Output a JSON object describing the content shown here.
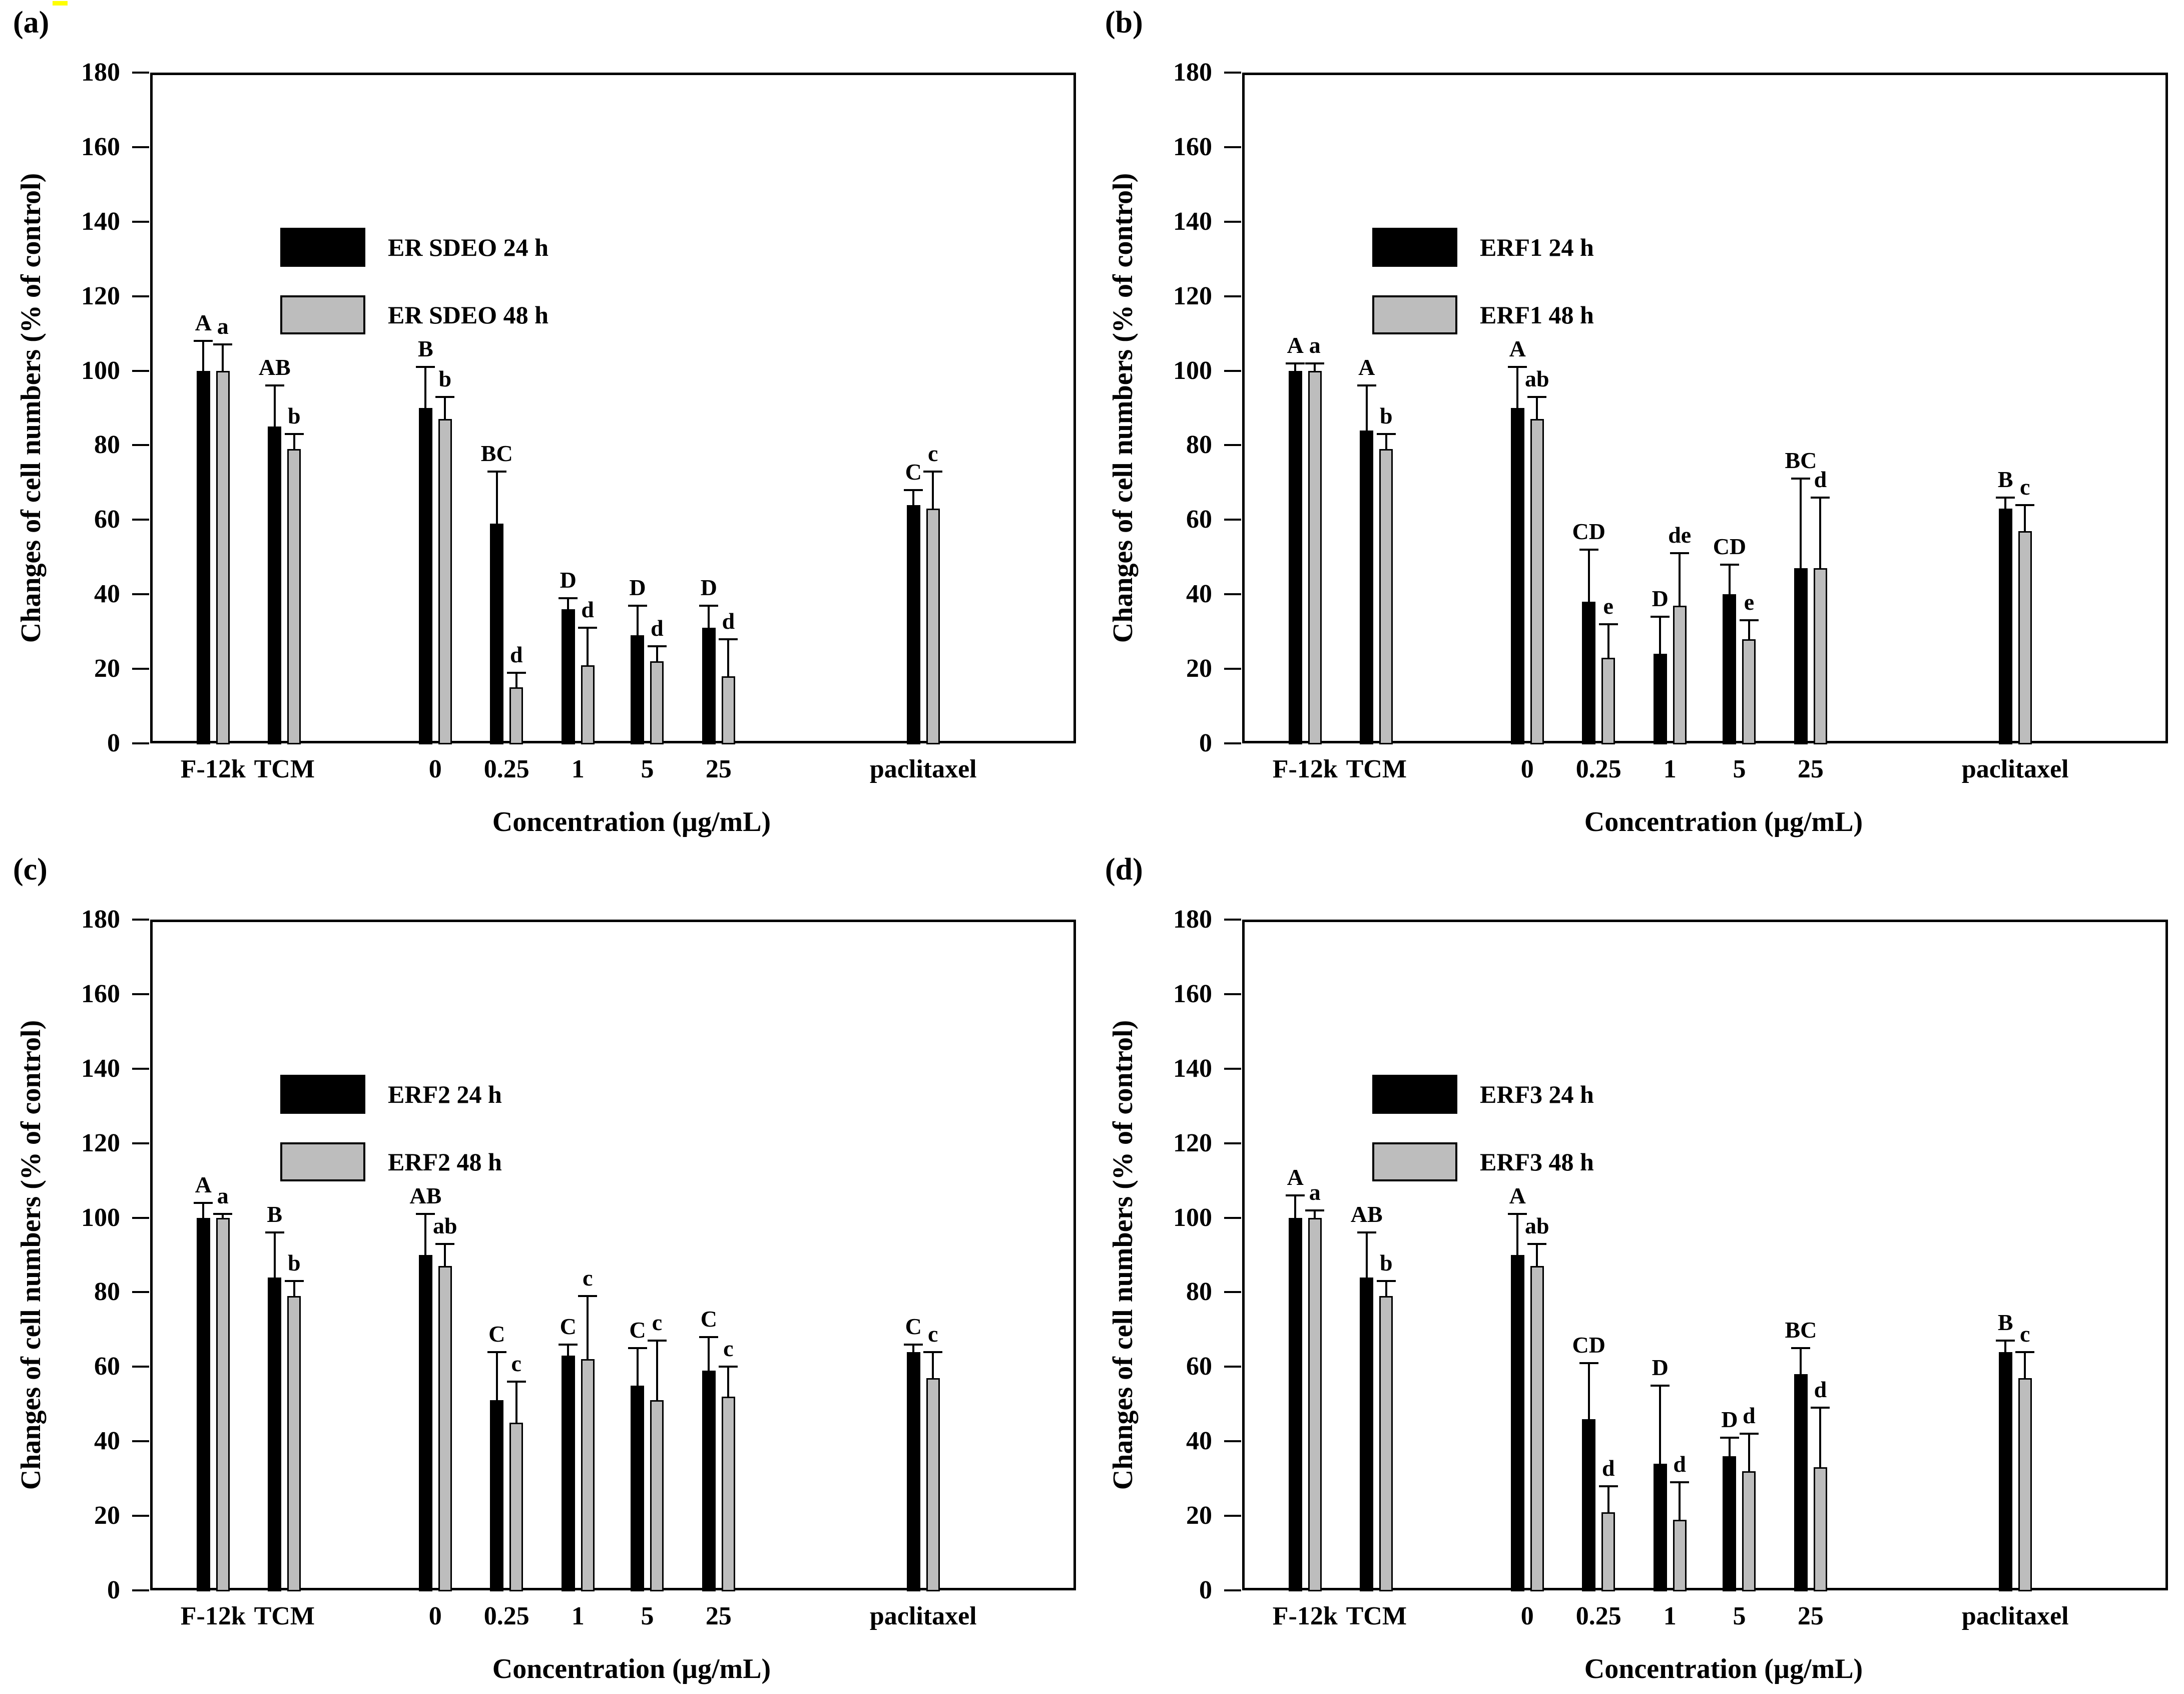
{
  "figure": {
    "background": "#ffffff",
    "highlight_mark_color": "#ffff00",
    "series_colors": {
      "24h": "#000000",
      "48h": "#bdbdbd"
    }
  },
  "chart_data": [
    {
      "panel_label": "(a)",
      "type": "bar",
      "title": "",
      "xlabel": "Concentration (µg/mL)",
      "ylabel": "Changes of cell numbers (% of control)",
      "ylim": [
        0,
        180
      ],
      "ytick_step": 20,
      "grid": false,
      "legend_position": "top-left-inside",
      "categories": [
        "F-12k",
        "TCM",
        "0",
        "0.25",
        "1",
        "5",
        "25",
        "paclitaxel"
      ],
      "category_positions": [
        0.068,
        0.145,
        0.308,
        0.385,
        0.462,
        0.537,
        0.614,
        0.835
      ],
      "series": [
        {
          "name": "ER SDEO 24 h",
          "color": "#000000",
          "values": [
            100,
            85,
            90,
            59,
            36,
            29,
            31,
            64
          ],
          "errors": [
            8,
            11,
            11,
            14,
            3,
            8,
            6,
            4
          ],
          "sig_letters": [
            "A",
            "AB",
            "B",
            "BC",
            "D",
            "D",
            "D",
            "C"
          ]
        },
        {
          "name": "ER SDEO 48 h",
          "color": "#bdbdbd",
          "values": [
            100,
            79,
            87,
            15,
            21,
            22,
            18,
            63
          ],
          "errors": [
            7,
            4,
            6,
            4,
            10,
            4,
            10,
            10
          ],
          "sig_letters": [
            "a",
            "b",
            "b",
            "d",
            "d",
            "d",
            "d",
            "c"
          ]
        }
      ]
    },
    {
      "panel_label": "(b)",
      "type": "bar",
      "title": "",
      "xlabel": "Concentration (µg/mL)",
      "ylabel": "Changes of cell numbers (% of control)",
      "ylim": [
        0,
        180
      ],
      "ytick_step": 20,
      "grid": false,
      "legend_position": "top-left-inside",
      "categories": [
        "F-12k",
        "TCM",
        "0",
        "0.25",
        "1",
        "5",
        "25",
        "paclitaxel"
      ],
      "category_positions": [
        0.068,
        0.145,
        0.308,
        0.385,
        0.462,
        0.537,
        0.614,
        0.835
      ],
      "series": [
        {
          "name": "ERF1 24 h",
          "color": "#000000",
          "values": [
            100,
            84,
            90,
            38,
            24,
            40,
            47,
            63
          ],
          "errors": [
            2,
            12,
            11,
            14,
            10,
            8,
            24,
            3
          ],
          "sig_letters": [
            "A",
            "A",
            "A",
            "CD",
            "D",
            "CD",
            "BC",
            "B"
          ]
        },
        {
          "name": "ERF1 48 h",
          "color": "#bdbdbd",
          "values": [
            100,
            79,
            87,
            23,
            37,
            28,
            47,
            57
          ],
          "errors": [
            2,
            4,
            6,
            9,
            14,
            5,
            19,
            7
          ],
          "sig_letters": [
            "a",
            "b",
            "ab",
            "e",
            "de",
            "e",
            "d",
            "c"
          ]
        }
      ]
    },
    {
      "panel_label": "(c)",
      "type": "bar",
      "title": "",
      "xlabel": "Concentration (µg/mL)",
      "ylabel": "Changes of cell numbers (% of control)",
      "ylim": [
        0,
        180
      ],
      "ytick_step": 20,
      "grid": false,
      "legend_position": "top-left-inside",
      "categories": [
        "F-12k",
        "TCM",
        "0",
        "0.25",
        "1",
        "5",
        "25",
        "paclitaxel"
      ],
      "category_positions": [
        0.068,
        0.145,
        0.308,
        0.385,
        0.462,
        0.537,
        0.614,
        0.835
      ],
      "series": [
        {
          "name": "ERF2 24 h",
          "color": "#000000",
          "values": [
            100,
            84,
            90,
            51,
            63,
            55,
            59,
            64
          ],
          "errors": [
            4,
            12,
            11,
            13,
            3,
            10,
            9,
            2
          ],
          "sig_letters": [
            "A",
            "B",
            "AB",
            "C",
            "C",
            "C",
            "C",
            "C"
          ]
        },
        {
          "name": "ERF2 48 h",
          "color": "#bdbdbd",
          "values": [
            100,
            79,
            87,
            45,
            62,
            51,
            52,
            57
          ],
          "errors": [
            1,
            4,
            6,
            11,
            17,
            16,
            8,
            7
          ],
          "sig_letters": [
            "a",
            "b",
            "ab",
            "c",
            "c",
            "c",
            "c",
            "c"
          ]
        }
      ]
    },
    {
      "panel_label": "(d)",
      "type": "bar",
      "title": "",
      "xlabel": "Concentration (µg/mL)",
      "ylabel": "Changes of cell numbers (% of control)",
      "ylim": [
        0,
        180
      ],
      "ytick_step": 20,
      "grid": false,
      "legend_position": "top-left-inside",
      "categories": [
        "F-12k",
        "TCM",
        "0",
        "0.25",
        "1",
        "5",
        "25",
        "paclitaxel"
      ],
      "category_positions": [
        0.068,
        0.145,
        0.308,
        0.385,
        0.462,
        0.537,
        0.614,
        0.835
      ],
      "series": [
        {
          "name": "ERF3 24 h",
          "color": "#000000",
          "values": [
            100,
            84,
            90,
            46,
            34,
            36,
            58,
            64
          ],
          "errors": [
            6,
            12,
            11,
            15,
            21,
            5,
            7,
            3
          ],
          "sig_letters": [
            "A",
            "AB",
            "A",
            "CD",
            "D",
            "D",
            "BC",
            "B"
          ]
        },
        {
          "name": "ERF3 48 h",
          "color": "#bdbdbd",
          "values": [
            100,
            79,
            87,
            21,
            19,
            32,
            33,
            57
          ],
          "errors": [
            2,
            4,
            6,
            7,
            10,
            10,
            16,
            7
          ],
          "sig_letters": [
            "a",
            "b",
            "ab",
            "d",
            "d",
            "d",
            "d",
            "c"
          ]
        }
      ]
    }
  ]
}
